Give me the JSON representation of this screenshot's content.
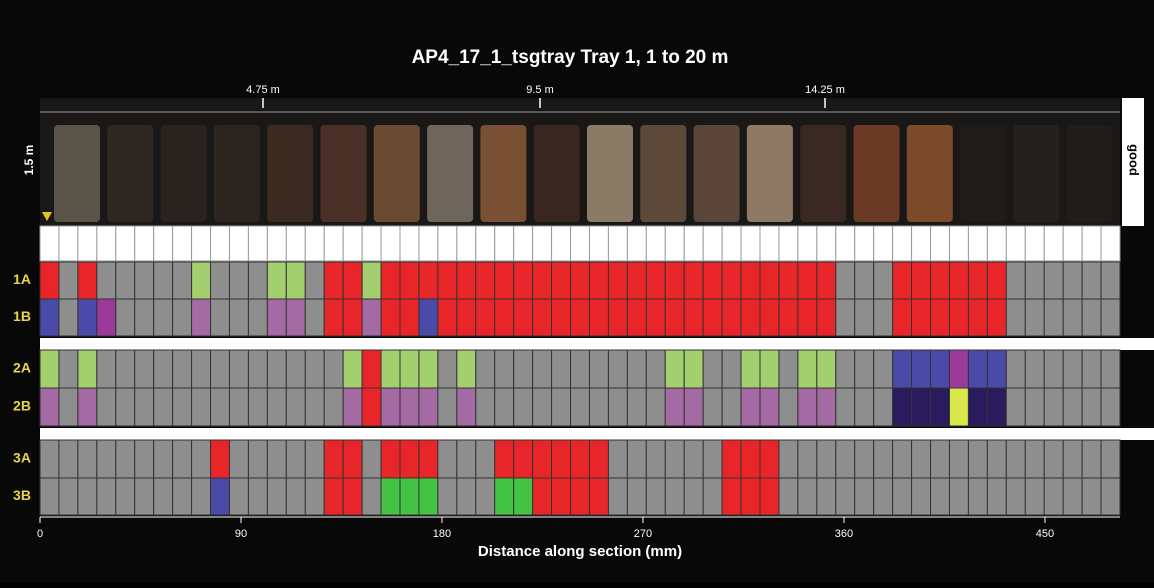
{
  "title": "AP4_17_1_tsgtray  Tray 1,  1 to 20 m",
  "top_scale": {
    "labels": [
      "4.75 m",
      "9.5 m",
      "14.25 m"
    ]
  },
  "depth_label": "1.5 m",
  "quality": "good",
  "rows": [
    {
      "label": "1A",
      "cells": [
        "#e8262a",
        "#8e8e8e",
        "#e8262a",
        "#8e8e8e",
        "#8e8e8e",
        "#8e8e8e",
        "#8e8e8e",
        "#8e8e8e",
        "#a3cf6e",
        "#8e8e8e",
        "#8e8e8e",
        "#8e8e8e",
        "#a3cf6e",
        "#a3cf6e",
        "#8e8e8e",
        "#e8262a",
        "#e8262a",
        "#a3cf6e",
        "#e8262a",
        "#e8262a",
        "#e8262a",
        "#e8262a",
        "#e8262a",
        "#e8262a",
        "#e8262a",
        "#e8262a",
        "#e8262a",
        "#e8262a",
        "#e8262a",
        "#e8262a",
        "#e8262a",
        "#e8262a",
        "#e8262a",
        "#e8262a",
        "#e8262a",
        "#e8262a",
        "#e8262a",
        "#e8262a",
        "#e8262a",
        "#e8262a",
        "#e8262a",
        "#e8262a",
        "#8e8e8e",
        "#8e8e8e",
        "#8e8e8e",
        "#e8262a",
        "#e8262a",
        "#e8262a",
        "#e8262a",
        "#e8262a",
        "#e8262a",
        "#8e8e8e",
        "#8e8e8e",
        "#8e8e8e",
        "#8e8e8e",
        "#8e8e8e",
        "#8e8e8e"
      ]
    },
    {
      "label": "1B",
      "cells": [
        "#4a4aa8",
        "#8e8e8e",
        "#4a4aa8",
        "#9c3a9c",
        "#8e8e8e",
        "#8e8e8e",
        "#8e8e8e",
        "#8e8e8e",
        "#a46aa4",
        "#8e8e8e",
        "#8e8e8e",
        "#8e8e8e",
        "#a46aa4",
        "#a46aa4",
        "#8e8e8e",
        "#e8262a",
        "#e8262a",
        "#a46aa4",
        "#e8262a",
        "#e8262a",
        "#4a4aa8",
        "#e8262a",
        "#e8262a",
        "#e8262a",
        "#e8262a",
        "#e8262a",
        "#e8262a",
        "#e8262a",
        "#e8262a",
        "#e8262a",
        "#e8262a",
        "#e8262a",
        "#e8262a",
        "#e8262a",
        "#e8262a",
        "#e8262a",
        "#e8262a",
        "#e8262a",
        "#e8262a",
        "#e8262a",
        "#e8262a",
        "#e8262a",
        "#8e8e8e",
        "#8e8e8e",
        "#8e8e8e",
        "#e8262a",
        "#e8262a",
        "#e8262a",
        "#e8262a",
        "#e8262a",
        "#e8262a",
        "#8e8e8e",
        "#8e8e8e",
        "#8e8e8e",
        "#8e8e8e",
        "#8e8e8e",
        "#8e8e8e"
      ]
    },
    {
      "label": "2A",
      "cells": [
        "#a3cf6e",
        "#8e8e8e",
        "#a3cf6e",
        "#8e8e8e",
        "#8e8e8e",
        "#8e8e8e",
        "#8e8e8e",
        "#8e8e8e",
        "#8e8e8e",
        "#8e8e8e",
        "#8e8e8e",
        "#8e8e8e",
        "#8e8e8e",
        "#8e8e8e",
        "#8e8e8e",
        "#8e8e8e",
        "#a3cf6e",
        "#e8262a",
        "#a3cf6e",
        "#a3cf6e",
        "#a3cf6e",
        "#8e8e8e",
        "#a3cf6e",
        "#8e8e8e",
        "#8e8e8e",
        "#8e8e8e",
        "#8e8e8e",
        "#8e8e8e",
        "#8e8e8e",
        "#8e8e8e",
        "#8e8e8e",
        "#8e8e8e",
        "#8e8e8e",
        "#a3cf6e",
        "#a3cf6e",
        "#8e8e8e",
        "#8e8e8e",
        "#a3cf6e",
        "#a3cf6e",
        "#8e8e8e",
        "#a3cf6e",
        "#a3cf6e",
        "#8e8e8e",
        "#8e8e8e",
        "#8e8e8e",
        "#4a4aa8",
        "#4a4aa8",
        "#4a4aa8",
        "#9c3a9c",
        "#4a4aa8",
        "#4a4aa8",
        "#8e8e8e",
        "#8e8e8e",
        "#8e8e8e",
        "#8e8e8e",
        "#8e8e8e",
        "#8e8e8e"
      ]
    },
    {
      "label": "2B",
      "cells": [
        "#a46aa4",
        "#8e8e8e",
        "#a46aa4",
        "#8e8e8e",
        "#8e8e8e",
        "#8e8e8e",
        "#8e8e8e",
        "#8e8e8e",
        "#8e8e8e",
        "#8e8e8e",
        "#8e8e8e",
        "#8e8e8e",
        "#8e8e8e",
        "#8e8e8e",
        "#8e8e8e",
        "#8e8e8e",
        "#a46aa4",
        "#e8262a",
        "#a46aa4",
        "#a46aa4",
        "#a46aa4",
        "#8e8e8e",
        "#a46aa4",
        "#8e8e8e",
        "#8e8e8e",
        "#8e8e8e",
        "#8e8e8e",
        "#8e8e8e",
        "#8e8e8e",
        "#8e8e8e",
        "#8e8e8e",
        "#8e8e8e",
        "#8e8e8e",
        "#a46aa4",
        "#a46aa4",
        "#8e8e8e",
        "#8e8e8e",
        "#a46aa4",
        "#a46aa4",
        "#8e8e8e",
        "#a46aa4",
        "#a46aa4",
        "#8e8e8e",
        "#8e8e8e",
        "#8e8e8e",
        "#2a1a5e",
        "#2a1a5e",
        "#2a1a5e",
        "#d8e84a",
        "#2a1a5e",
        "#2a1a5e",
        "#8e8e8e",
        "#8e8e8e",
        "#8e8e8e",
        "#8e8e8e",
        "#8e8e8e",
        "#8e8e8e"
      ]
    },
    {
      "label": "3A",
      "cells": [
        "#8e8e8e",
        "#8e8e8e",
        "#8e8e8e",
        "#8e8e8e",
        "#8e8e8e",
        "#8e8e8e",
        "#8e8e8e",
        "#8e8e8e",
        "#8e8e8e",
        "#e8262a",
        "#8e8e8e",
        "#8e8e8e",
        "#8e8e8e",
        "#8e8e8e",
        "#8e8e8e",
        "#e8262a",
        "#e8262a",
        "#8e8e8e",
        "#e8262a",
        "#e8262a",
        "#e8262a",
        "#8e8e8e",
        "#8e8e8e",
        "#8e8e8e",
        "#e8262a",
        "#e8262a",
        "#e8262a",
        "#e8262a",
        "#e8262a",
        "#e8262a",
        "#8e8e8e",
        "#8e8e8e",
        "#8e8e8e",
        "#8e8e8e",
        "#8e8e8e",
        "#8e8e8e",
        "#e8262a",
        "#e8262a",
        "#e8262a",
        "#8e8e8e",
        "#8e8e8e",
        "#8e8e8e",
        "#8e8e8e",
        "#8e8e8e",
        "#8e8e8e",
        "#8e8e8e",
        "#8e8e8e",
        "#8e8e8e",
        "#8e8e8e",
        "#8e8e8e",
        "#8e8e8e",
        "#8e8e8e",
        "#8e8e8e",
        "#8e8e8e",
        "#8e8e8e",
        "#8e8e8e",
        "#8e8e8e"
      ]
    },
    {
      "label": "3B",
      "cells": [
        "#8e8e8e",
        "#8e8e8e",
        "#8e8e8e",
        "#8e8e8e",
        "#8e8e8e",
        "#8e8e8e",
        "#8e8e8e",
        "#8e8e8e",
        "#8e8e8e",
        "#4a4aa8",
        "#8e8e8e",
        "#8e8e8e",
        "#8e8e8e",
        "#8e8e8e",
        "#8e8e8e",
        "#e8262a",
        "#e8262a",
        "#8e8e8e",
        "#44c244",
        "#44c244",
        "#44c244",
        "#8e8e8e",
        "#8e8e8e",
        "#8e8e8e",
        "#44c244",
        "#44c244",
        "#e8262a",
        "#e8262a",
        "#e8262a",
        "#e8262a",
        "#8e8e8e",
        "#8e8e8e",
        "#8e8e8e",
        "#8e8e8e",
        "#8e8e8e",
        "#8e8e8e",
        "#e8262a",
        "#e8262a",
        "#e8262a",
        "#8e8e8e",
        "#8e8e8e",
        "#8e8e8e",
        "#8e8e8e",
        "#8e8e8e",
        "#8e8e8e",
        "#8e8e8e",
        "#8e8e8e",
        "#8e8e8e",
        "#8e8e8e",
        "#8e8e8e",
        "#8e8e8e",
        "#8e8e8e",
        "#8e8e8e",
        "#8e8e8e",
        "#8e8e8e",
        "#8e8e8e",
        "#8e8e8e"
      ]
    }
  ],
  "x_axis": {
    "label": "Distance along section (mm)",
    "ticks": [
      0,
      90,
      180,
      270,
      360,
      450
    ],
    "range": [
      0,
      483.6
    ]
  }
}
